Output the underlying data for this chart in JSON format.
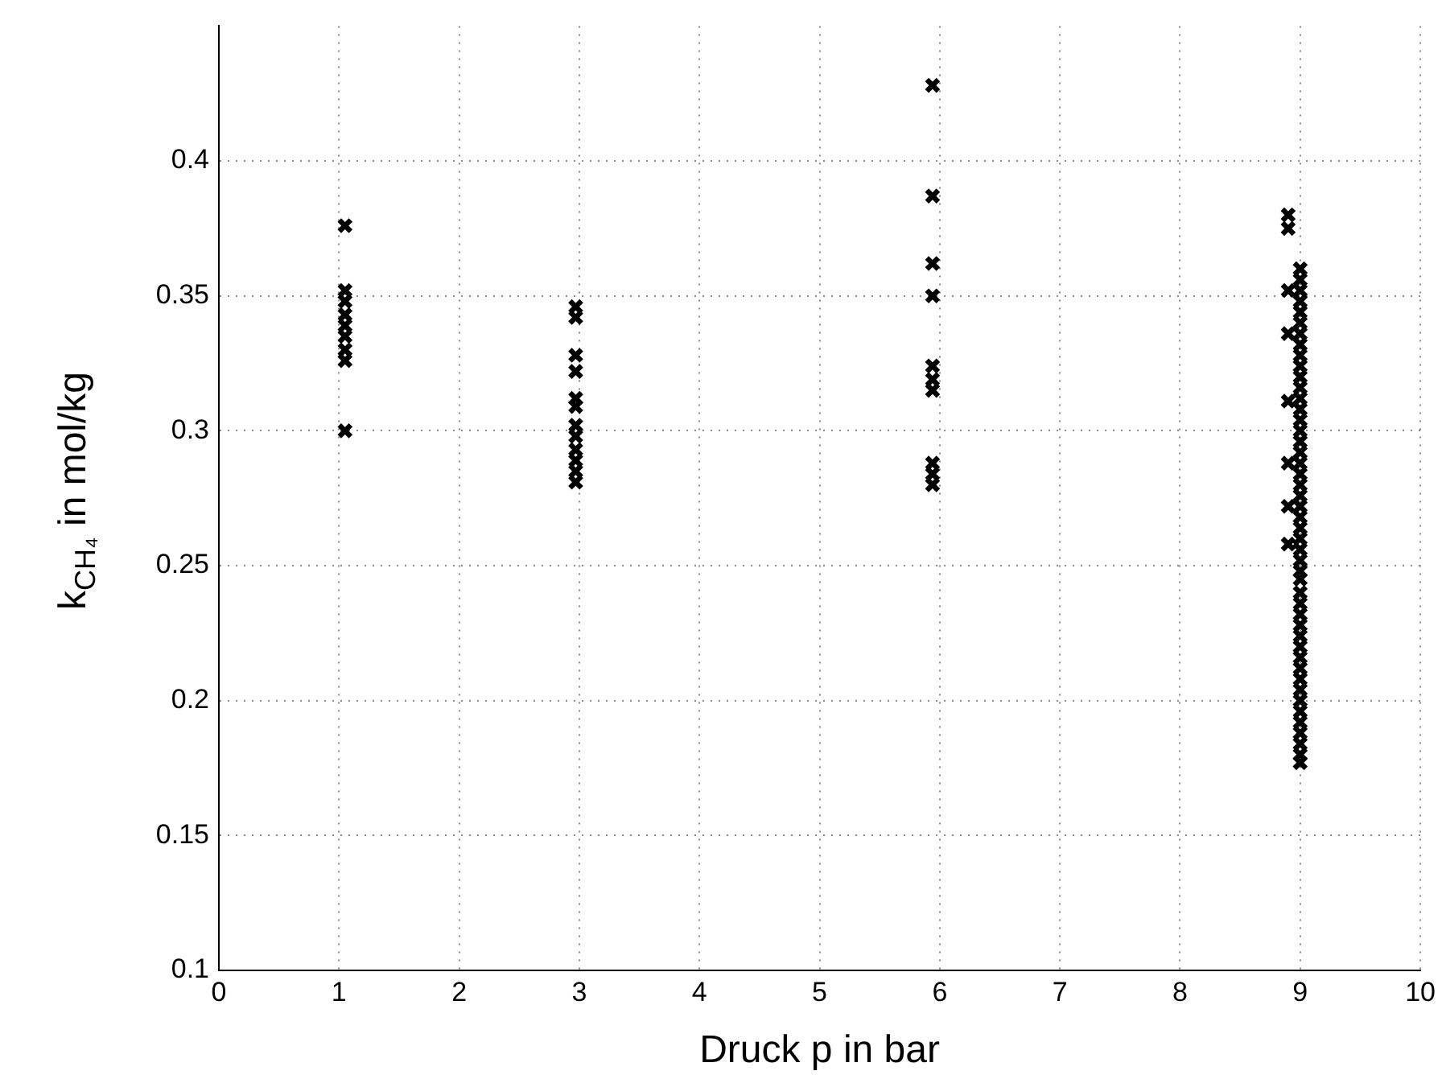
{
  "chart_data": {
    "type": "scatter",
    "xlabel": "Druck p in bar",
    "ylabel": "k$_{CH₄}$ in mol/kg",
    "xlim": [
      0,
      10
    ],
    "xticks": [
      0,
      1,
      2,
      3,
      4,
      5,
      6,
      7,
      8,
      9,
      10
    ],
    "ylim": [
      0.1,
      0.45
    ],
    "yticks": [
      0.1,
      0.15,
      0.2,
      0.25,
      0.3,
      0.35,
      0.4
    ],
    "grid": true,
    "marker": "cross",
    "legend": false,
    "series": [
      {
        "color": "#000000",
        "x": [
          1.05,
          1.05,
          1.05,
          1.05,
          1.05,
          1.05,
          1.05,
          1.05,
          1.05
        ],
        "values": [
          0.376,
          0.352,
          0.348,
          0.343,
          0.339,
          0.335,
          0.33,
          0.326,
          0.3
        ]
      },
      {
        "color": "#000000",
        "x": [
          2.97,
          2.97,
          2.97,
          2.97,
          2.97,
          2.97,
          2.97,
          2.97,
          2.97,
          2.97,
          2.97,
          2.97
        ],
        "values": [
          0.346,
          0.342,
          0.328,
          0.322,
          0.312,
          0.309,
          0.302,
          0.298,
          0.293,
          0.289,
          0.285,
          0.281
        ]
      },
      {
        "color": "#000000",
        "x": [
          5.94,
          5.94,
          5.94,
          5.94,
          5.94,
          5.94,
          5.94,
          5.94,
          5.94,
          5.94
        ],
        "values": [
          0.428,
          0.387,
          0.362,
          0.35,
          0.324,
          0.319,
          0.315,
          0.288,
          0.284,
          0.28
        ]
      },
      {
        "color": "#000000",
        "x": [
          8.9,
          8.9,
          8.9,
          8.9,
          8.9,
          8.9,
          8.9,
          8.9
        ],
        "values": [
          0.38,
          0.375,
          0.352,
          0.336,
          0.311,
          0.288,
          0.272,
          0.258
        ]
      },
      {
        "color": "#000000",
        "x": [
          9,
          9,
          9,
          9,
          9,
          9,
          9,
          9,
          9,
          9,
          9,
          9,
          9,
          9,
          9,
          9,
          9,
          9,
          9,
          9,
          9,
          9,
          9,
          9,
          9,
          9,
          9,
          9,
          9,
          9,
          9,
          9,
          9,
          9,
          9,
          9,
          9,
          9,
          9,
          9,
          9,
          9,
          9,
          9,
          9,
          9,
          9
        ],
        "values": [
          0.36,
          0.356,
          0.352,
          0.348,
          0.344,
          0.34,
          0.336,
          0.332,
          0.328,
          0.324,
          0.32,
          0.316,
          0.312,
          0.308,
          0.304,
          0.3,
          0.296,
          0.292,
          0.288,
          0.284,
          0.28,
          0.276,
          0.272,
          0.268,
          0.264,
          0.26,
          0.256,
          0.252,
          0.248,
          0.245,
          0.24,
          0.236,
          0.232,
          0.228,
          0.224,
          0.22,
          0.216,
          0.212,
          0.208,
          0.204,
          0.2,
          0.196,
          0.192,
          0.188,
          0.184,
          0.18,
          0.177
        ]
      }
    ]
  }
}
